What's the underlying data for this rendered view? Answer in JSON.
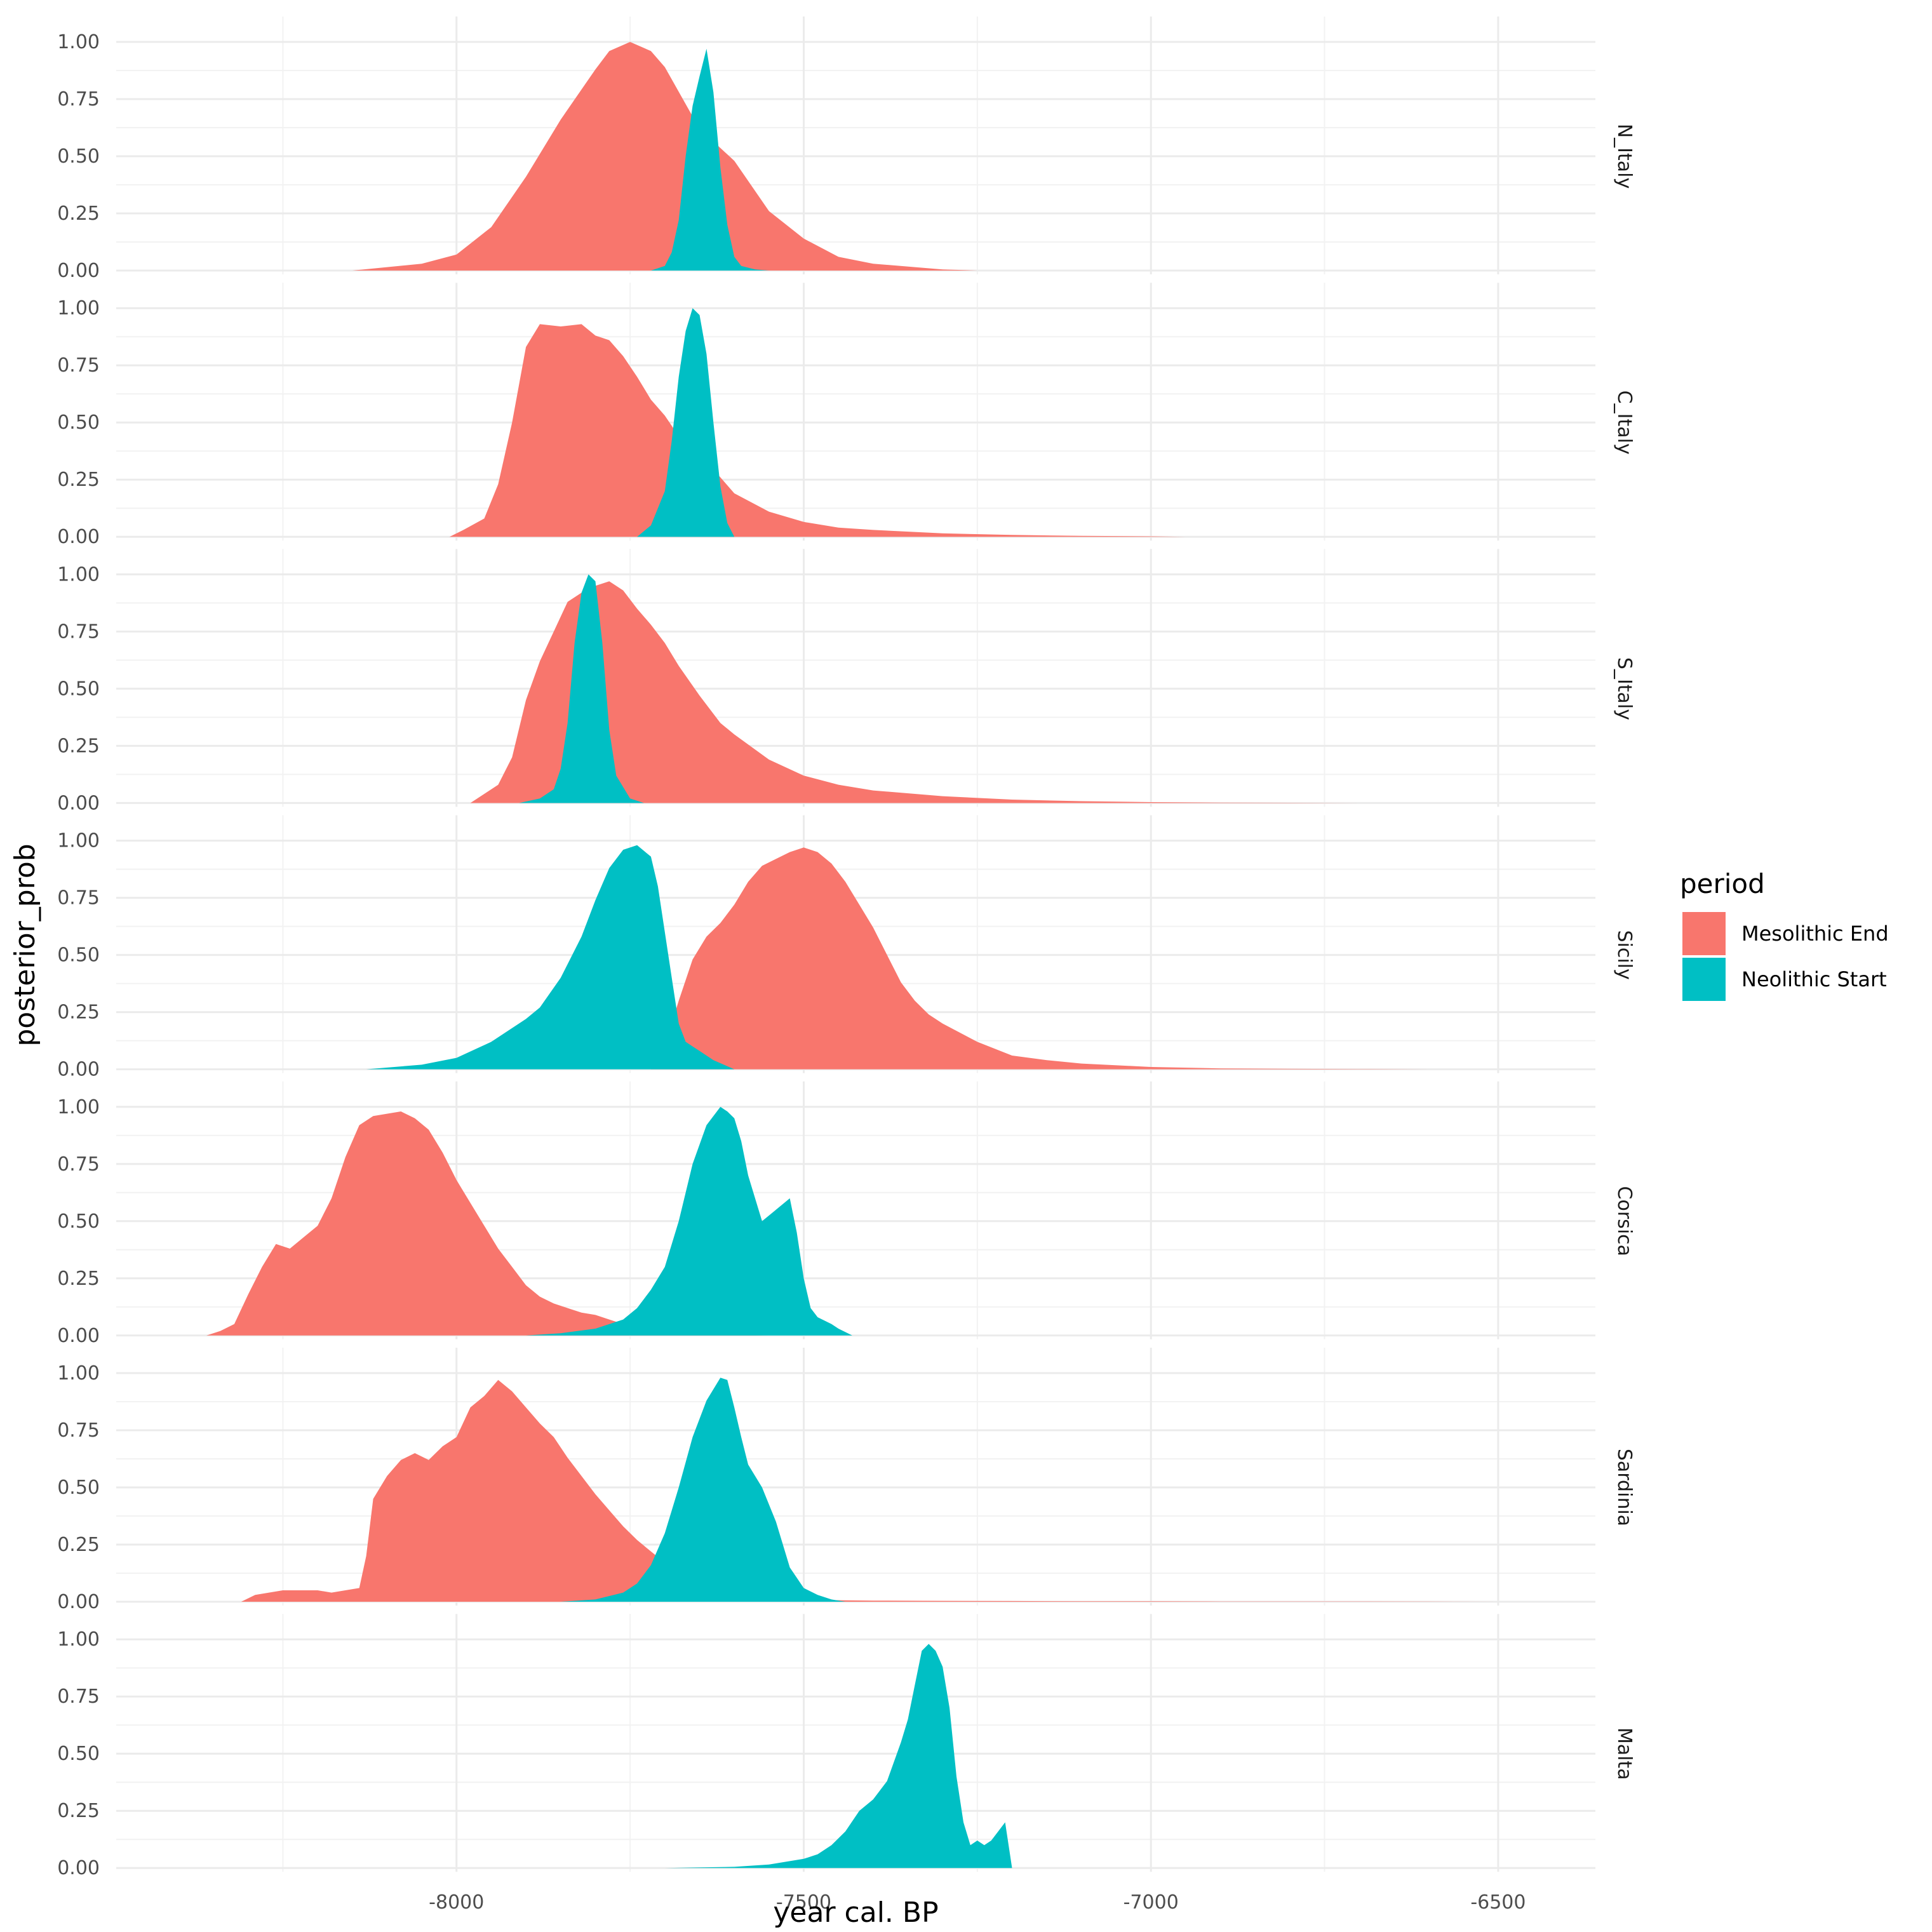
{
  "chart_data": {
    "type": "area",
    "xlabel": "year cal. BP",
    "ylabel": "posterior_prob",
    "xlim": [
      -8490,
      -6360
    ],
    "ylim": [
      0,
      1
    ],
    "x_ticks": [
      -8000,
      -7500,
      -7000,
      -6500
    ],
    "y_ticks": [
      0,
      0.25,
      0.5,
      0.75,
      1
    ],
    "y_tick_labels": [
      "0.00",
      "0.25",
      "0.50",
      "0.75",
      "1.00"
    ],
    "grid": true,
    "facet_layout": "stacked rows, strip labels on right",
    "legend": {
      "title": "period",
      "position": "right",
      "entries": [
        {
          "label": "Mesolithic End",
          "color": "#F8766D"
        },
        {
          "label": "Neolithic Start",
          "color": "#00BFC4"
        }
      ]
    },
    "facets": [
      {
        "label": "N_Italy",
        "series": [
          {
            "name": "Mesolithic End",
            "x": [
              -8150,
              -8050,
              -8000,
              -7950,
              -7900,
              -7850,
              -7800,
              -7780,
              -7750,
              -7720,
              -7700,
              -7650,
              -7600,
              -7550,
              -7500,
              -7450,
              -7400,
              -7300,
              -7250
            ],
            "y": [
              0,
              0.03,
              0.07,
              0.19,
              0.41,
              0.66,
              0.88,
              0.96,
              1.0,
              0.96,
              0.89,
              0.62,
              0.48,
              0.26,
              0.14,
              0.06,
              0.03,
              0.005,
              0
            ]
          },
          {
            "name": "Neolithic Start",
            "x": [
              -7720,
              -7700,
              -7690,
              -7680,
              -7670,
              -7660,
              -7650,
              -7640,
              -7630,
              -7620,
              -7610,
              -7600,
              -7590,
              -7570,
              -7550
            ],
            "y": [
              0,
              0.02,
              0.08,
              0.22,
              0.5,
              0.72,
              0.85,
              0.97,
              0.78,
              0.45,
              0.2,
              0.06,
              0.02,
              0.005,
              0
            ]
          }
        ]
      },
      {
        "label": "C_Italy",
        "series": [
          {
            "name": "Mesolithic End",
            "x": [
              -8010,
              -7990,
              -7960,
              -7940,
              -7920,
              -7900,
              -7880,
              -7850,
              -7820,
              -7800,
              -7780,
              -7760,
              -7740,
              -7720,
              -7700,
              -7680,
              -7650,
              -7620,
              -7600,
              -7550,
              -7500,
              -7450,
              -7400,
              -7300,
              -7200,
              -7100,
              -7000,
              -6950
            ],
            "y": [
              0,
              0.03,
              0.08,
              0.23,
              0.5,
              0.83,
              0.93,
              0.92,
              0.93,
              0.88,
              0.86,
              0.79,
              0.7,
              0.6,
              0.53,
              0.44,
              0.36,
              0.26,
              0.19,
              0.11,
              0.065,
              0.04,
              0.03,
              0.015,
              0.008,
              0.004,
              0.002,
              0
            ]
          },
          {
            "name": "Neolithic Start",
            "x": [
              -7740,
              -7720,
              -7700,
              -7690,
              -7680,
              -7670,
              -7660,
              -7650,
              -7640,
              -7630,
              -7620,
              -7610,
              -7600
            ],
            "y": [
              0,
              0.05,
              0.2,
              0.42,
              0.7,
              0.9,
              1.0,
              0.97,
              0.8,
              0.5,
              0.22,
              0.06,
              0
            ]
          }
        ]
      },
      {
        "label": "S_Italy",
        "series": [
          {
            "name": "Mesolithic End",
            "x": [
              -7980,
              -7960,
              -7940,
              -7920,
              -7900,
              -7880,
              -7860,
              -7840,
              -7820,
              -7800,
              -7780,
              -7760,
              -7740,
              -7720,
              -7700,
              -7680,
              -7650,
              -7620,
              -7600,
              -7550,
              -7500,
              -7450,
              -7400,
              -7300,
              -7200,
              -7100,
              -7000,
              -6900,
              -6800,
              -6700
            ],
            "y": [
              0,
              0.04,
              0.08,
              0.2,
              0.45,
              0.62,
              0.75,
              0.88,
              0.92,
              0.95,
              0.97,
              0.93,
              0.85,
              0.78,
              0.7,
              0.6,
              0.47,
              0.35,
              0.3,
              0.19,
              0.12,
              0.08,
              0.055,
              0.03,
              0.015,
              0.008,
              0.004,
              0.002,
              0.001,
              0
            ]
          },
          {
            "name": "Neolithic Start",
            "x": [
              -7910,
              -7880,
              -7860,
              -7850,
              -7840,
              -7830,
              -7820,
              -7810,
              -7800,
              -7790,
              -7780,
              -7770,
              -7750,
              -7730
            ],
            "y": [
              0,
              0.02,
              0.06,
              0.15,
              0.35,
              0.7,
              0.92,
              1.0,
              0.97,
              0.7,
              0.32,
              0.12,
              0.02,
              0
            ]
          }
        ]
      },
      {
        "label": "Sicily",
        "series": [
          {
            "name": "Mesolithic End",
            "x": [
              -7720,
              -7700,
              -7680,
              -7660,
              -7640,
              -7620,
              -7600,
              -7580,
              -7560,
              -7540,
              -7520,
              -7500,
              -7480,
              -7460,
              -7440,
              -7420,
              -7400,
              -7380,
              -7360,
              -7340,
              -7320,
              -7300,
              -7250,
              -7200,
              -7150,
              -7100,
              -7000,
              -6900,
              -6800,
              -6700,
              -6600
            ],
            "y": [
              0,
              0.1,
              0.3,
              0.48,
              0.58,
              0.64,
              0.72,
              0.82,
              0.89,
              0.92,
              0.95,
              0.97,
              0.95,
              0.9,
              0.82,
              0.72,
              0.62,
              0.5,
              0.38,
              0.3,
              0.24,
              0.2,
              0.12,
              0.06,
              0.04,
              0.025,
              0.01,
              0.004,
              0.002,
              0.001,
              0
            ]
          },
          {
            "name": "Neolithic Start",
            "x": [
              -8130,
              -8050,
              -8000,
              -7950,
              -7900,
              -7880,
              -7850,
              -7820,
              -7800,
              -7780,
              -7760,
              -7740,
              -7720,
              -7710,
              -7700,
              -7690,
              -7680,
              -7670,
              -7660,
              -7650,
              -7630,
              -7600
            ],
            "y": [
              0,
              0.02,
              0.05,
              0.12,
              0.22,
              0.27,
              0.4,
              0.58,
              0.74,
              0.88,
              0.96,
              0.98,
              0.93,
              0.8,
              0.6,
              0.4,
              0.2,
              0.12,
              0.1,
              0.08,
              0.04,
              0
            ]
          }
        ]
      },
      {
        "label": "Corsica",
        "series": [
          {
            "name": "Mesolithic End",
            "x": [
              -8360,
              -8340,
              -8320,
              -8300,
              -8280,
              -8260,
              -8240,
              -8220,
              -8200,
              -8180,
              -8160,
              -8140,
              -8120,
              -8100,
              -8080,
              -8060,
              -8040,
              -8020,
              -8000,
              -7980,
              -7960,
              -7940,
              -7920,
              -7900,
              -7880,
              -7860,
              -7840,
              -7820,
              -7800,
              -7780,
              -7760,
              -7740,
              -7700,
              -7650,
              -7600,
              -7550
            ],
            "y": [
              0,
              0.02,
              0.05,
              0.18,
              0.3,
              0.4,
              0.38,
              0.43,
              0.48,
              0.6,
              0.78,
              0.92,
              0.96,
              0.97,
              0.98,
              0.95,
              0.9,
              0.8,
              0.68,
              0.58,
              0.48,
              0.38,
              0.3,
              0.22,
              0.17,
              0.14,
              0.12,
              0.1,
              0.09,
              0.07,
              0.05,
              0.03,
              0.015,
              0.006,
              0.002,
              0
            ]
          },
          {
            "name": "Neolithic Start",
            "x": [
              -7900,
              -7850,
              -7800,
              -7760,
              -7740,
              -7720,
              -7700,
              -7680,
              -7660,
              -7640,
              -7620,
              -7610,
              -7600,
              -7590,
              -7580,
              -7560,
              -7540,
              -7520,
              -7510,
              -7500,
              -7490,
              -7480,
              -7460,
              -7450,
              -7440,
              -7430
            ],
            "y": [
              0,
              0.01,
              0.03,
              0.07,
              0.12,
              0.2,
              0.3,
              0.5,
              0.75,
              0.92,
              1.0,
              0.98,
              0.95,
              0.85,
              0.7,
              0.5,
              0.55,
              0.6,
              0.45,
              0.25,
              0.12,
              0.08,
              0.05,
              0.03,
              0.015,
              0
            ]
          }
        ]
      },
      {
        "label": "Sardinia",
        "series": [
          {
            "name": "Mesolithic End",
            "x": [
              -8310,
              -8290,
              -8250,
              -8200,
              -8180,
              -8160,
              -8140,
              -8130,
              -8120,
              -8100,
              -8080,
              -8060,
              -8040,
              -8020,
              -8000,
              -7980,
              -7960,
              -7940,
              -7920,
              -7900,
              -7880,
              -7860,
              -7840,
              -7820,
              -7800,
              -7780,
              -7760,
              -7740,
              -7720,
              -7700,
              -7680,
              -7660,
              -7640,
              -7620,
              -7600,
              -7550,
              -7500,
              -7400,
              -7300,
              -7200,
              -7100,
              -7000,
              -6900,
              -6800,
              -6700,
              -6600,
              -6500
            ],
            "y": [
              0,
              0.03,
              0.05,
              0.05,
              0.04,
              0.05,
              0.06,
              0.2,
              0.45,
              0.55,
              0.62,
              0.65,
              0.62,
              0.68,
              0.72,
              0.85,
              0.9,
              0.97,
              0.92,
              0.85,
              0.78,
              0.72,
              0.63,
              0.55,
              0.47,
              0.4,
              0.33,
              0.27,
              0.22,
              0.17,
              0.12,
              0.08,
              0.05,
              0.03,
              0.02,
              0.012,
              0.008,
              0.005,
              0.004,
              0.003,
              0.002,
              0.002,
              0.001,
              0.001,
              0.001,
              0.0005,
              0
            ]
          },
          {
            "name": "Neolithic Start",
            "x": [
              -7850,
              -7800,
              -7760,
              -7740,
              -7720,
              -7700,
              -7680,
              -7660,
              -7640,
              -7620,
              -7610,
              -7600,
              -7590,
              -7580,
              -7560,
              -7540,
              -7520,
              -7500,
              -7480,
              -7460,
              -7440
            ],
            "y": [
              0,
              0.01,
              0.04,
              0.08,
              0.16,
              0.3,
              0.5,
              0.72,
              0.88,
              0.98,
              0.97,
              0.85,
              0.72,
              0.6,
              0.5,
              0.35,
              0.15,
              0.06,
              0.03,
              0.01,
              0
            ]
          }
        ]
      },
      {
        "label": "Malta",
        "series": [
          {
            "name": "Neolithic Start",
            "x": [
              -7700,
              -7600,
              -7550,
              -7500,
              -7480,
              -7460,
              -7440,
              -7420,
              -7400,
              -7380,
              -7360,
              -7350,
              -7340,
              -7330,
              -7320,
              -7310,
              -7300,
              -7290,
              -7280,
              -7270,
              -7260,
              -7250,
              -7240,
              -7230,
              -7220,
              -7210,
              -7200
            ],
            "y": [
              0,
              0.005,
              0.015,
              0.04,
              0.06,
              0.1,
              0.16,
              0.25,
              0.3,
              0.38,
              0.55,
              0.65,
              0.8,
              0.95,
              0.98,
              0.95,
              0.88,
              0.7,
              0.4,
              0.2,
              0.1,
              0.12,
              0.1,
              0.12,
              0.16,
              0.2,
              0
            ]
          }
        ]
      }
    ]
  }
}
